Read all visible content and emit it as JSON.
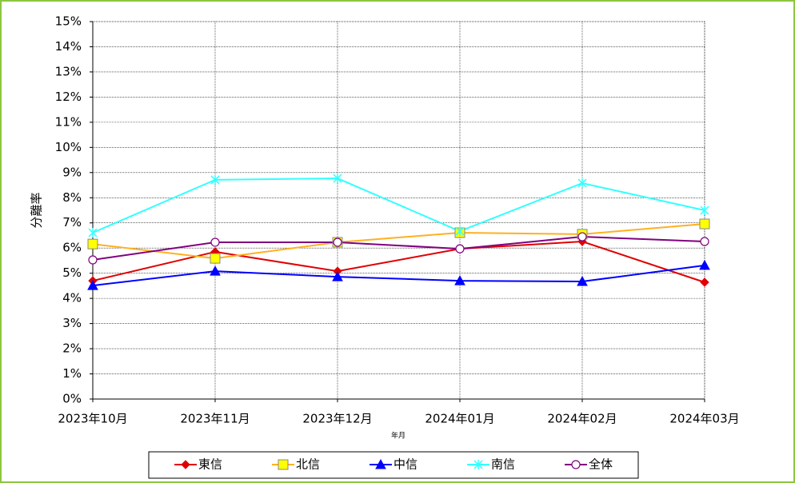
{
  "chart_data": {
    "type": "line",
    "y_label": "分離率",
    "x_label": "年月",
    "categories": [
      "2023年10月",
      "2023年11月",
      "2023年12月",
      "2024年01月",
      "2024年02月",
      "2024年03月"
    ],
    "series": [
      {
        "name": "東信",
        "color": "#e00000",
        "marker": "diamond",
        "values": [
          4.7,
          5.85,
          5.08,
          5.97,
          6.26,
          4.64
        ]
      },
      {
        "name": "北信",
        "color": "#ffb020",
        "marker": "square",
        "values": [
          6.16,
          5.59,
          6.23,
          6.61,
          6.55,
          6.96
        ]
      },
      {
        "name": "中信",
        "color": "#0000ff",
        "marker": "triangle",
        "values": [
          4.51,
          5.08,
          4.86,
          4.7,
          4.67,
          5.31
        ]
      },
      {
        "name": "南信",
        "color": "#33ffff",
        "marker": "star",
        "values": [
          6.61,
          8.71,
          8.77,
          6.67,
          8.58,
          7.5
        ]
      },
      {
        "name": "全体",
        "color": "#800080",
        "marker": "circle",
        "values": [
          5.53,
          6.23,
          6.23,
          5.97,
          6.45,
          6.26
        ]
      }
    ],
    "ylim": [
      0,
      15
    ],
    "yticks": [
      {
        "value": 0,
        "label": "0%"
      },
      {
        "value": 1,
        "label": "1%"
      },
      {
        "value": 2,
        "label": "2%"
      },
      {
        "value": 3,
        "label": "3%"
      },
      {
        "value": 4,
        "label": "4%"
      },
      {
        "value": 5,
        "label": "5%"
      },
      {
        "value": 6,
        "label": "6%"
      },
      {
        "value": 7,
        "label": "7%"
      },
      {
        "value": 8,
        "label": "8%"
      },
      {
        "value": 9,
        "label": "9%"
      },
      {
        "value": 10,
        "label": "10%"
      },
      {
        "value": 11,
        "label": "11%"
      },
      {
        "value": 12,
        "label": "12%"
      },
      {
        "value": 13,
        "label": "13%"
      },
      {
        "value": 14,
        "label": "14%"
      },
      {
        "value": 15,
        "label": "15%"
      }
    ],
    "grid": true,
    "legend": "bottom"
  }
}
